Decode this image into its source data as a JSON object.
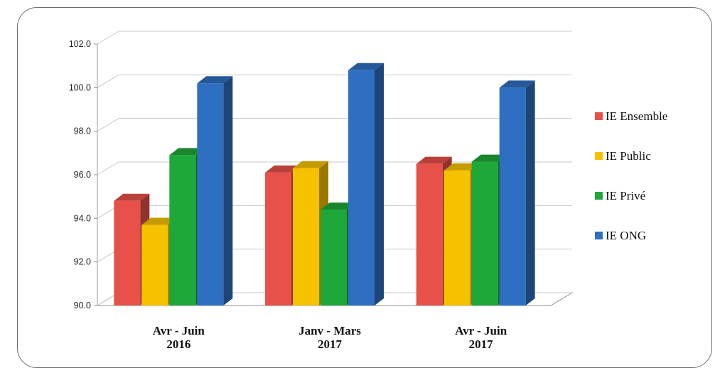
{
  "chart_data": {
    "type": "bar",
    "title": "",
    "xlabel": "",
    "ylabel": "",
    "categories": [
      [
        "Avr - Juin",
        "2016"
      ],
      [
        "Janv - Mars",
        "2017"
      ],
      [
        "Avr - Juin",
        "2017"
      ]
    ],
    "series": [
      {
        "name": "IE Ensemble",
        "color": "#e8514a",
        "values": [
          94.8,
          96.1,
          96.5
        ]
      },
      {
        "name": "IE Public",
        "color": "#f6c200",
        "values": [
          93.7,
          96.3,
          96.2
        ]
      },
      {
        "name": "IE Privé",
        "color": "#1fa83a",
        "values": [
          96.9,
          94.4,
          96.6
        ]
      },
      {
        "name": "IE ONG",
        "color": "#2f6fc1",
        "values": [
          100.2,
          100.8,
          100.0
        ]
      }
    ],
    "ylim": [
      90.0,
      102.0
    ],
    "yticks": [
      "90.0",
      "92.0",
      "94.0",
      "96.0",
      "98.0",
      "100.0",
      "102.0"
    ],
    "grid": true,
    "legend_position": "right",
    "style": "3d-clustered-column"
  }
}
